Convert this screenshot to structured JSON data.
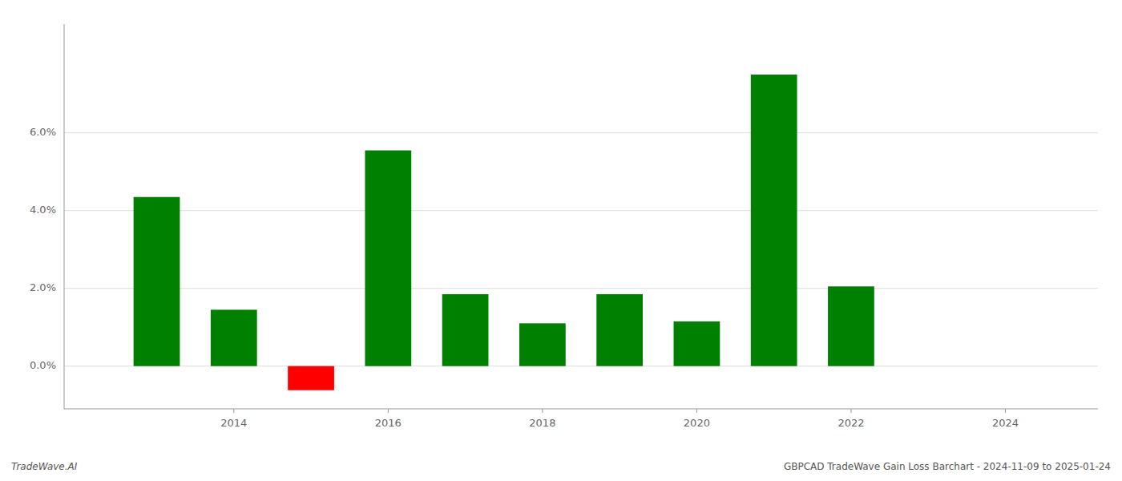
{
  "chart_data": {
    "type": "bar",
    "x": [
      2013,
      2014,
      2015,
      2016,
      2017,
      2018,
      2019,
      2020,
      2021,
      2022
    ],
    "values": [
      4.35,
      1.45,
      -0.62,
      5.55,
      1.85,
      1.1,
      1.85,
      1.15,
      7.5,
      2.05
    ],
    "colors": [
      "#008000",
      "#008000",
      "#ff0000",
      "#008000",
      "#008000",
      "#008000",
      "#008000",
      "#008000",
      "#008000",
      "#008000"
    ],
    "xlim": [
      2011.8,
      2025.2
    ],
    "ylim": [
      -1.1,
      8.8
    ],
    "xticks": [
      2014,
      2016,
      2018,
      2020,
      2022,
      2024
    ],
    "yticks": [
      {
        "value": 0.0,
        "label": "0.0%"
      },
      {
        "value": 2.0,
        "label": "2.0%"
      },
      {
        "value": 4.0,
        "label": "4.0%"
      },
      {
        "value": 6.0,
        "label": "6.0%"
      }
    ],
    "grid": true,
    "annotations": [
      "TradeWave.AI",
      "GBPCAD TradeWave Gain Loss Barchart - 2024-11-09 to 2025-01-24"
    ]
  }
}
